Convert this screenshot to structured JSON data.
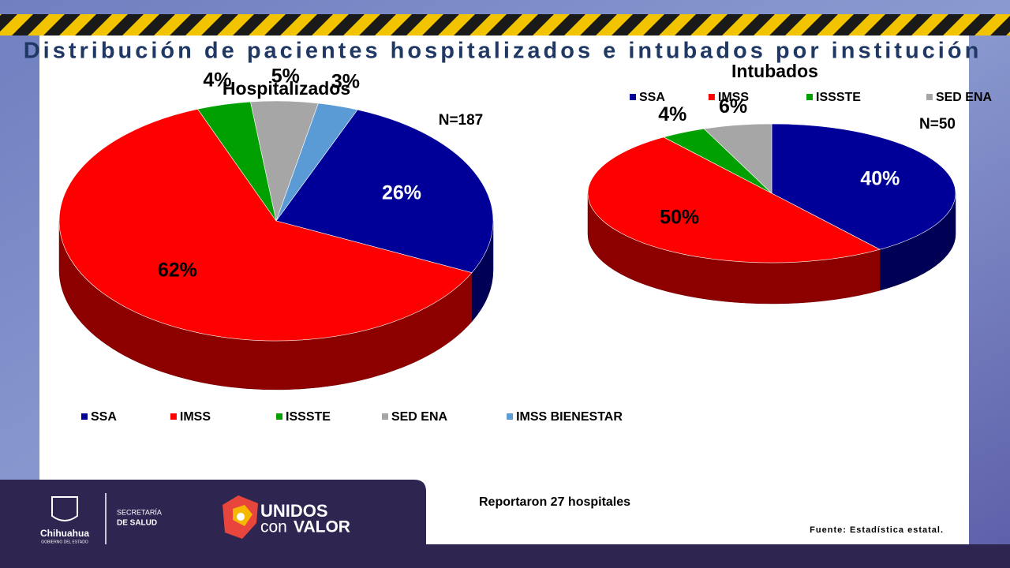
{
  "title": "Distribución de pacientes hospitalizados e intubados por institución",
  "chart_data": [
    {
      "type": "pie",
      "title": "Hospitalizados",
      "annotation": "N=187",
      "categories": [
        "SSA",
        "IMSS",
        "ISSSTE",
        "SED ENA",
        "IMSS BIENESTAR"
      ],
      "values": [
        26,
        62,
        4,
        5,
        3
      ],
      "value_labels": [
        "26%",
        "62%",
        "4%",
        "5%",
        "3%"
      ],
      "colors": [
        "#000099",
        "#ff0000",
        "#00a000",
        "#a6a6a6",
        "#5b9bd5"
      ],
      "legend": "bottom"
    },
    {
      "type": "pie",
      "title": "Intubados",
      "annotation": "N=50",
      "categories": [
        "SSA",
        "IMSS",
        "ISSSTE",
        "SED ENA"
      ],
      "values": [
        40,
        50,
        4,
        6
      ],
      "value_labels": [
        "40%",
        "50%",
        "4%",
        "6%"
      ],
      "colors": [
        "#000099",
        "#ff0000",
        "#00a000",
        "#a6a6a6"
      ],
      "legend": "top"
    }
  ],
  "footer": {
    "note": "Reportaron 27 hospitales",
    "source": "Fuente: Estadística estatal.",
    "state": "Chihuahua",
    "state_sub": "GOBIERNO DEL ESTADO",
    "secretaria": "SECRETARÍA",
    "salud": "DE SALUD",
    "brand_1": "UNIDOS",
    "brand_2": "con",
    "brand_3": "VALOR"
  }
}
